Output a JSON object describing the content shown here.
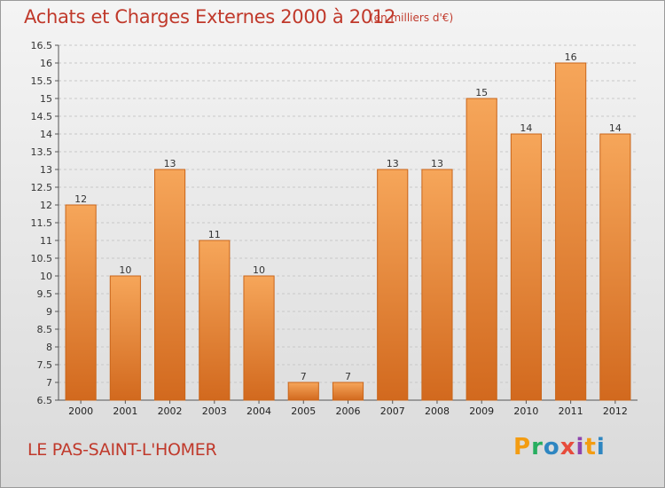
{
  "title": "Achats et Charges Externes 2000 à 2012",
  "subtitle": "(en milliers d'€)",
  "location": "LE PAS-SAINT-L'HOMER",
  "logo": {
    "text": "Proxiti",
    "letters": [
      "P",
      "r",
      "o",
      "x",
      "i",
      "t",
      "i"
    ],
    "colors": [
      "#f39c12",
      "#27ae60",
      "#2e86c1",
      "#e74c3c",
      "#8e44ad",
      "#f39c12",
      "#2e86c1"
    ]
  },
  "colors": {
    "bar_top": "#f6a65a",
    "bar_bottom": "#d2691e",
    "bar_edge": "#c9651a",
    "title": "#c0392b"
  },
  "chart_data": {
    "type": "bar",
    "title": "Achats et Charges Externes 2000 à 2012",
    "subtitle": "(en milliers d'€)",
    "xlabel": "",
    "ylabel": "",
    "categories": [
      "2000",
      "2001",
      "2002",
      "2003",
      "2004",
      "2005",
      "2006",
      "2007",
      "2008",
      "2009",
      "2010",
      "2011",
      "2012"
    ],
    "values": [
      12,
      10,
      13,
      11,
      10,
      7,
      7,
      13,
      13,
      15,
      14,
      16,
      14
    ],
    "value_labels": [
      "12",
      "10",
      "13",
      "11",
      "10",
      "7",
      "7",
      "13",
      "13",
      "15",
      "14",
      "16",
      "14"
    ],
    "ylim": [
      6.5,
      16.5
    ],
    "yticks": [
      6.5,
      7,
      7.5,
      8,
      8.5,
      9,
      9.5,
      10,
      10.5,
      11,
      11.5,
      12,
      12.5,
      13,
      13.5,
      14,
      14.5,
      15,
      15.5,
      16,
      16.5
    ],
    "ytick_labels": [
      "6.5",
      "7",
      "7.5",
      "8",
      "8.5",
      "9",
      "9.5",
      "10",
      "10.5",
      "11",
      "11.5",
      "12",
      "12.5",
      "13",
      "13.5",
      "14",
      "14.5",
      "15",
      "15.5",
      "16",
      "16.5"
    ],
    "grid": true,
    "legend": "none"
  }
}
